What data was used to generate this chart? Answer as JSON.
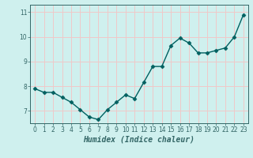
{
  "x": [
    0,
    1,
    2,
    3,
    4,
    5,
    6,
    7,
    8,
    9,
    10,
    11,
    12,
    13,
    14,
    15,
    16,
    17,
    18,
    19,
    20,
    21,
    22,
    23
  ],
  "y": [
    7.9,
    7.75,
    7.75,
    7.55,
    7.35,
    7.05,
    6.75,
    6.65,
    7.05,
    7.35,
    7.65,
    7.5,
    8.15,
    8.8,
    8.8,
    9.65,
    9.95,
    9.75,
    9.35,
    9.35,
    9.45,
    9.55,
    10.0,
    10.9
  ],
  "line_color": "#006060",
  "marker": "D",
  "marker_size": 2.5,
  "bg_color": "#cff0ee",
  "grid_color": "#f0c8c8",
  "xlabel": "Humidex (Indice chaleur)",
  "xlim": [
    -0.5,
    23.5
  ],
  "ylim": [
    6.5,
    11.3
  ],
  "yticks": [
    7,
    8,
    9,
    10,
    11
  ],
  "xticks": [
    0,
    1,
    2,
    3,
    4,
    5,
    6,
    7,
    8,
    9,
    10,
    11,
    12,
    13,
    14,
    15,
    16,
    17,
    18,
    19,
    20,
    21,
    22,
    23
  ],
  "tick_fontsize": 5.5,
  "xlabel_fontsize": 7.0,
  "linewidth": 1.0
}
